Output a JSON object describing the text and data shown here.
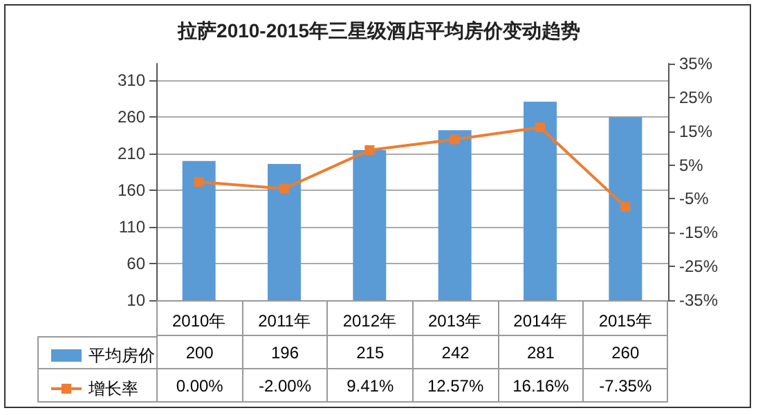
{
  "chart_data": {
    "type": "bar",
    "title": "拉萨2010-2015年三星级酒店平均房价变动趋势",
    "categories": [
      "2010年",
      "2011年",
      "2012年",
      "2013年",
      "2014年",
      "2015年"
    ],
    "series": [
      {
        "name": "平均房价",
        "color": "#5b9bd5",
        "values": [
          200,
          196,
          215,
          242,
          281,
          260
        ],
        "value_labels": [
          "200",
          "196",
          "215",
          "242",
          "281",
          "260"
        ]
      },
      {
        "name": "增长率",
        "type": "line",
        "axis": "y2",
        "color": "#ed7d31",
        "values": [
          0.0,
          -2.0,
          9.41,
          12.57,
          16.16,
          -7.35
        ],
        "value_labels": [
          "0.00%",
          "-2.00%",
          "9.41%",
          "12.57%",
          "16.16%",
          "-7.35%"
        ]
      }
    ],
    "ylim": [
      10,
      333
    ],
    "yticks": [
      10,
      60,
      110,
      160,
      210,
      260,
      310
    ],
    "y2lim": [
      -35,
      35
    ],
    "y2ticks": [
      {
        "value": 35,
        "label": "35%"
      },
      {
        "value": 25,
        "label": "25%"
      },
      {
        "value": 15,
        "label": "15%"
      },
      {
        "value": 5,
        "label": "5%"
      },
      {
        "value": -5,
        "label": "-5%"
      },
      {
        "value": -15,
        "label": "-15%"
      },
      {
        "value": -25,
        "label": "-25%"
      },
      {
        "value": -35,
        "label": "-35%"
      }
    ],
    "grid": "y",
    "legend": "bottom",
    "marker": "square",
    "line_style": "solid"
  }
}
